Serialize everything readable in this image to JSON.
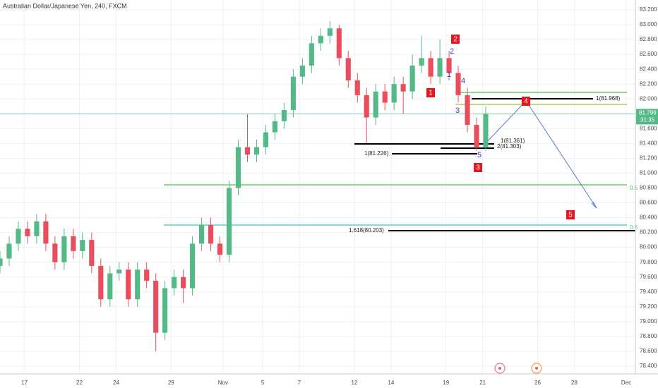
{
  "chart_data": {
    "type": "candlestick",
    "title": "Australian Dollar/Japanese Yen, 240, FXCM",
    "up_color": "#53b987",
    "down_color": "#eb4d5c",
    "x": [
      0,
      3,
      6,
      9,
      12,
      15,
      18,
      21,
      24,
      27,
      30,
      33,
      36,
      39,
      42,
      45,
      48,
      51,
      54,
      57,
      60,
      63,
      66,
      69,
      72,
      75,
      78,
      81,
      84,
      87,
      90,
      93,
      96,
      99,
      102,
      105,
      108,
      111,
      114,
      117,
      120,
      123,
      126,
      129,
      132,
      135,
      138,
      141,
      144,
      147,
      150,
      153,
      156,
      159
    ],
    "open": [
      79.75,
      79.85,
      80.05,
      80.25,
      80.15,
      80.35,
      80.05,
      79.8,
      80.15,
      79.95,
      80.1,
      79.75,
      79.3,
      79.65,
      79.7,
      79.3,
      79.7,
      79.55,
      78.85,
      79.45,
      79.6,
      79.45,
      80.05,
      80.3,
      80.05,
      79.9,
      80.8,
      81.35,
      81.25,
      81.35,
      81.55,
      81.7,
      81.85,
      82.3,
      82.45,
      82.75,
      82.85,
      82.95,
      82.55,
      82.25,
      82.05,
      81.75,
      82.1,
      81.95,
      82.2,
      82.1,
      82.45,
      82.55,
      82.3,
      82.55,
      82.35,
      82.05,
      81.65,
      81.35
    ],
    "high": [
      79.95,
      80.15,
      80.35,
      80.35,
      80.45,
      80.45,
      80.15,
      80.25,
      80.25,
      80.2,
      80.2,
      79.85,
      79.75,
      79.8,
      79.8,
      79.8,
      79.8,
      79.65,
      79.55,
      79.7,
      79.7,
      80.15,
      80.4,
      80.4,
      80.15,
      80.9,
      81.45,
      81.8,
      81.45,
      81.65,
      81.8,
      81.95,
      82.4,
      82.55,
      82.85,
      82.95,
      83.05,
      83.0,
      82.65,
      82.35,
      82.15,
      82.2,
      82.2,
      82.3,
      82.3,
      82.6,
      82.85,
      82.65,
      82.8,
      82.65,
      82.45,
      82.15,
      81.75,
      81.9
    ],
    "low": [
      79.65,
      79.75,
      79.95,
      80.05,
      80.05,
      79.95,
      79.7,
      79.7,
      79.85,
      79.85,
      79.65,
      79.2,
      79.2,
      79.55,
      79.2,
      79.2,
      79.45,
      78.6,
      78.75,
      79.35,
      79.25,
      79.35,
      79.95,
      79.95,
      79.8,
      79.8,
      80.7,
      81.15,
      81.15,
      81.25,
      81.45,
      81.6,
      81.75,
      82.2,
      82.35,
      82.65,
      82.75,
      82.45,
      82.15,
      81.95,
      81.4,
      81.65,
      81.85,
      81.85,
      81.8,
      82.0,
      82.35,
      82.2,
      82.2,
      82.25,
      81.95,
      81.55,
      81.3,
      81.3
    ],
    "close": [
      79.85,
      80.05,
      80.25,
      80.15,
      80.35,
      80.05,
      79.8,
      80.15,
      79.95,
      80.1,
      79.75,
      79.3,
      79.65,
      79.7,
      79.3,
      79.7,
      79.55,
      78.85,
      79.45,
      79.6,
      79.45,
      80.05,
      80.3,
      80.05,
      79.9,
      80.8,
      81.35,
      81.25,
      81.35,
      81.55,
      81.7,
      81.85,
      82.3,
      82.45,
      82.75,
      82.85,
      82.95,
      82.55,
      82.25,
      82.05,
      81.75,
      82.1,
      81.95,
      82.2,
      82.1,
      82.45,
      82.55,
      82.3,
      82.55,
      82.35,
      82.05,
      81.65,
      81.35,
      81.8
    ],
    "xlim": [
      0,
      208
    ],
    "xticks": [
      {
        "value": 8,
        "label": "17"
      },
      {
        "value": 26,
        "label": "22"
      },
      {
        "value": 38,
        "label": "24"
      },
      {
        "value": 56,
        "label": "29"
      },
      {
        "value": 73,
        "label": "Nov"
      },
      {
        "value": 86,
        "label": "5"
      },
      {
        "value": 98,
        "label": "7"
      },
      {
        "value": 116,
        "label": "12"
      },
      {
        "value": 128,
        "label": "14"
      },
      {
        "value": 146,
        "label": "19"
      },
      {
        "value": 158,
        "label": "21"
      },
      {
        "value": 176,
        "label": "26"
      },
      {
        "value": 188,
        "label": "28"
      },
      {
        "value": 205,
        "label": "Dec"
      }
    ],
    "ylim": [
      78.295,
      83.333
    ],
    "yticks": [
      {
        "value": 78.4,
        "label": "78.400"
      },
      {
        "value": 78.6,
        "label": "78.600"
      },
      {
        "value": 78.8,
        "label": "78.800"
      },
      {
        "value": 79,
        "label": "79.000"
      },
      {
        "value": 79.2,
        "label": "79.200"
      },
      {
        "value": 79.4,
        "label": "79.400"
      },
      {
        "value": 79.6,
        "label": "79.600"
      },
      {
        "value": 79.8,
        "label": "79.800"
      },
      {
        "value": 80,
        "label": "80.000"
      },
      {
        "value": 80.2,
        "label": "80.200"
      },
      {
        "value": 80.4,
        "label": "80.400"
      },
      {
        "value": 80.6,
        "label": "80.600"
      },
      {
        "value": 80.8,
        "label": "80.800"
      },
      {
        "value": 81,
        "label": "81.000"
      },
      {
        "value": 81.2,
        "label": "81.200"
      },
      {
        "value": 81.4,
        "label": "81.400"
      },
      {
        "value": 81.6,
        "label": "81.600"
      },
      {
        "value": 81.8,
        "label": "81.800"
      },
      {
        "value": 82,
        "label": "82.000"
      },
      {
        "value": 82.2,
        "label": "82.200"
      },
      {
        "value": 82.4,
        "label": "82.400"
      },
      {
        "value": 82.6,
        "label": "82.600"
      },
      {
        "value": 82.8,
        "label": "82.800"
      },
      {
        "value": 83,
        "label": "83.000"
      },
      {
        "value": 83.2,
        "label": "83.200"
      }
    ],
    "grid": true,
    "last_price": 81.799,
    "countdown": "31:35",
    "wave_labels_red": [
      "1",
      "2",
      "3",
      "4",
      "5"
    ],
    "wave_labels_blue": [
      "1",
      "2",
      "3",
      "4",
      "5"
    ],
    "levels": [
      "1(81.968)",
      "1(81.361)",
      "2(81.303)",
      "1(81.226)",
      "1.618(80.203)"
    ],
    "fib_labels": [
      "0.5",
      "0.6"
    ]
  }
}
